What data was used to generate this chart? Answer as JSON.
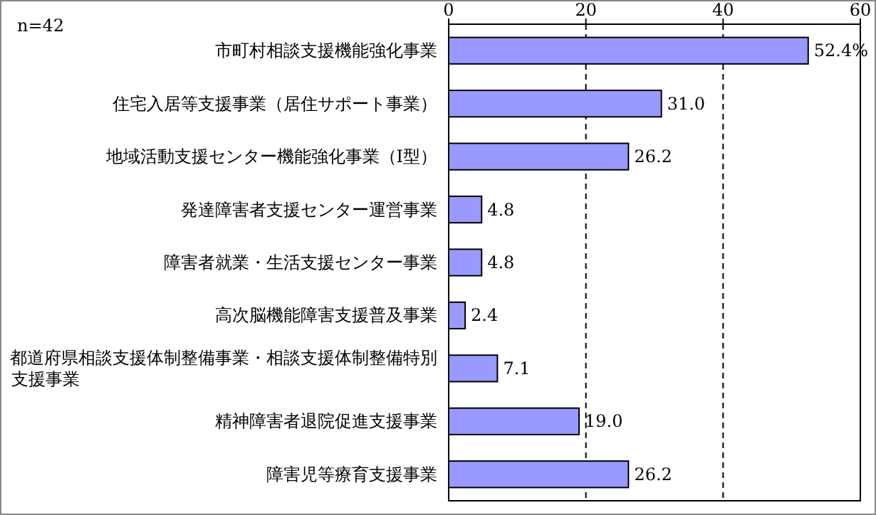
{
  "chart_data": {
    "type": "bar",
    "orientation": "horizontal",
    "categories": [
      "市町村相談支援機能強化事業",
      "住宅入居等支援事業（居住サポート事業）",
      "地域活動支援センター機能強化事業（Ⅰ型）",
      "発達障害者支援センター運営事業",
      "障害者就業・生活支援センター事業",
      "高次脳機能障害支援普及事業",
      "都道府県相談支援体制整備事業・相談支援体制整備特別支援事業",
      "精神障害者退院促進支援事業",
      "障害児等療育支援事業"
    ],
    "values": [
      52.4,
      31.0,
      26.2,
      4.8,
      4.8,
      2.4,
      7.1,
      19.0,
      26.2
    ],
    "value_labels": [
      "52.4%",
      "31.0",
      "26.2",
      "4.8",
      "4.8",
      "2.4",
      "7.1",
      "19.0",
      "26.2"
    ],
    "color": "#9999ff",
    "xlim": [
      0,
      60
    ],
    "xticks": [
      0,
      20,
      40,
      60
    ],
    "grid": "x",
    "annotations": [
      "n=42"
    ]
  }
}
